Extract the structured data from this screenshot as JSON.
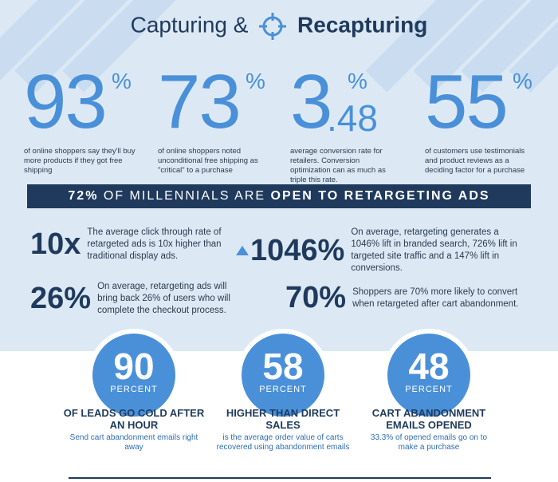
{
  "title": {
    "part1": "Capturing",
    "amp": "&",
    "part2": "Recapturing"
  },
  "stats": [
    {
      "value": "93",
      "unit": "%",
      "desc": "of online shoppers say they'll buy more products if they got free shipping"
    },
    {
      "value": "73",
      "unit": "%",
      "desc": "of online shoppers noted unconditional free shipping as \"critical\" to a purchase"
    },
    {
      "value": "3",
      "unit": "%",
      "decimal": ".48",
      "desc": "average conversion rate for retailers. Conversion optimization can as much as triple this rate."
    },
    {
      "value": "55",
      "unit": "%",
      "desc": "of customers use testimonials and product reviews as a deciding factor for a purchase"
    }
  ],
  "banner": {
    "prefix": "72%",
    "middle": "OF MILLENNIALS ARE",
    "suffix": "OPEN TO RETARGETING ADS"
  },
  "facts": [
    {
      "value": "10x",
      "text": "The average click through rate of retargeted ads is 10x higher than traditional display ads."
    },
    {
      "value": "1046%",
      "text": "On average, retargeting generates a 1046% lift in branded search, 726% lift in targeted site traffic and a 147% lift in conversions."
    },
    {
      "value": "26%",
      "text": "On average, retargeting ads will bring back 26% of users who will complete the checkout process."
    },
    {
      "value": "70%",
      "text": "Shoppers are 70% more likely to convert when retargeted after cart abandonment."
    }
  ],
  "circles": [
    {
      "value": "90",
      "label": "PERCENT",
      "caption": "OF LEADS GO COLD AFTER AN HOUR",
      "sub": "Send cart abandonment emails right away"
    },
    {
      "value": "58",
      "label": "PERCENT",
      "caption": "HIGHER THAN DIRECT SALES",
      "sub": "is the average order value of carts recovered using abandonment emails"
    },
    {
      "value": "48",
      "label": "PERCENT",
      "caption": "CART ABANDONMENT EMAILS OPENED",
      "sub": "33.3% of opened emails go on to make a purchase"
    }
  ],
  "colors": {
    "navy": "#1f3a5c",
    "blue": "#4a90d9",
    "background": "#dce9f5"
  },
  "icons": {
    "title_mark": "crosshair-icon",
    "up_arrow": "triangle-up-icon"
  }
}
